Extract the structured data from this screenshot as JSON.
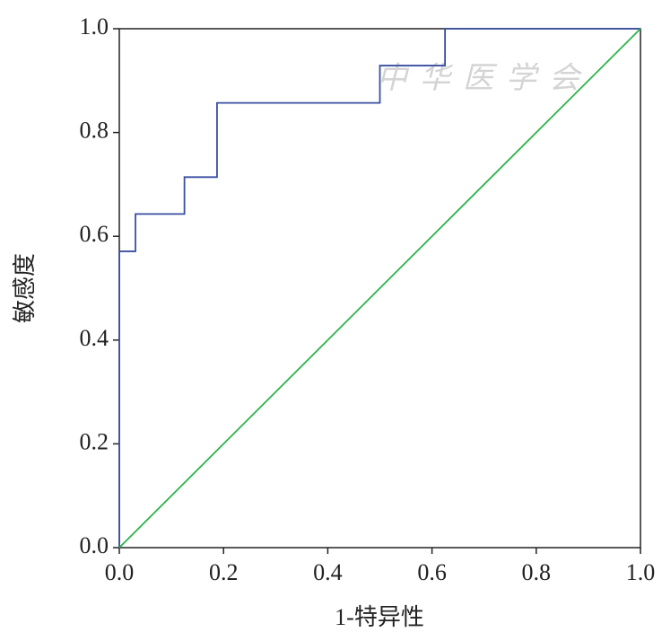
{
  "chart_data": {
    "type": "line",
    "xlabel": "1-特异性",
    "ylabel": "敏感度",
    "watermark": "中华医学会",
    "xlim": [
      0,
      1
    ],
    "ylim": [
      0,
      1
    ],
    "xticks": [
      {
        "value": 0,
        "label": "0.0"
      },
      0.2,
      0.4,
      0.6,
      0.8,
      {
        "value": 1,
        "label": "1.0"
      }
    ],
    "yticks": [
      {
        "value": 0,
        "label": "0.0"
      },
      0.2,
      0.4,
      0.6,
      0.8,
      {
        "value": 1,
        "label": "1.0"
      }
    ],
    "step": true,
    "series": [
      {
        "color": "#3a4fa0",
        "x": [
          0,
          0,
          0.031,
          0.031,
          0.125,
          0.125,
          0.1875,
          0.1875,
          0.5,
          0.5,
          0.625,
          0.625,
          1
        ],
        "values": [
          0,
          0.571,
          0.571,
          0.643,
          0.643,
          0.714,
          0.714,
          0.857,
          0.857,
          0.929,
          0.929,
          1,
          1
        ]
      },
      {
        "color": "#2db34a",
        "x": [
          0,
          1
        ],
        "values": [
          0,
          1
        ]
      }
    ]
  }
}
